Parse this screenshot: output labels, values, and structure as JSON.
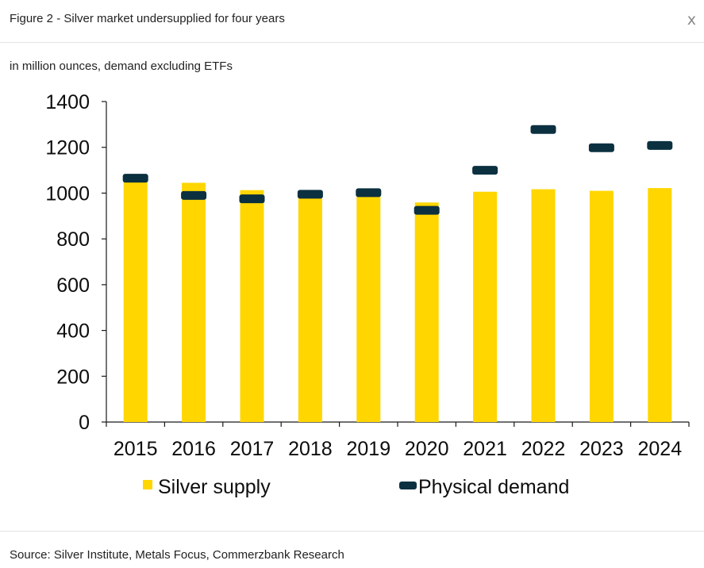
{
  "header": {
    "title": "Figure 2 - Silver market undersupplied for four years",
    "close_label": "x"
  },
  "subtitle": "in million ounces, demand excluding ETFs",
  "footer": {
    "source": "Source: Silver Institute, Metals Focus, Commerzbank Research"
  },
  "colors": {
    "supply": "#FFD600",
    "demand": "#0B3040",
    "axis": "#1a1a1a"
  },
  "chart_data": {
    "type": "bar",
    "categories": [
      "2015",
      "2016",
      "2017",
      "2018",
      "2019",
      "2020",
      "2021",
      "2022",
      "2023",
      "2024"
    ],
    "series": [
      {
        "name": "Silver supply",
        "type": "bar",
        "values": [
          1062,
          1045,
          1013,
          999,
          1000,
          959,
          1006,
          1017,
          1010,
          1022
        ]
      },
      {
        "name": "Physical demand",
        "type": "marker",
        "values": [
          1065,
          990,
          975,
          995,
          1002,
          925,
          1100,
          1278,
          1198,
          1208
        ]
      }
    ],
    "ylim": [
      0,
      1400
    ],
    "yticks": [
      0,
      200,
      400,
      600,
      800,
      1000,
      1200,
      1400
    ],
    "grid": false,
    "legend": "bottom"
  }
}
